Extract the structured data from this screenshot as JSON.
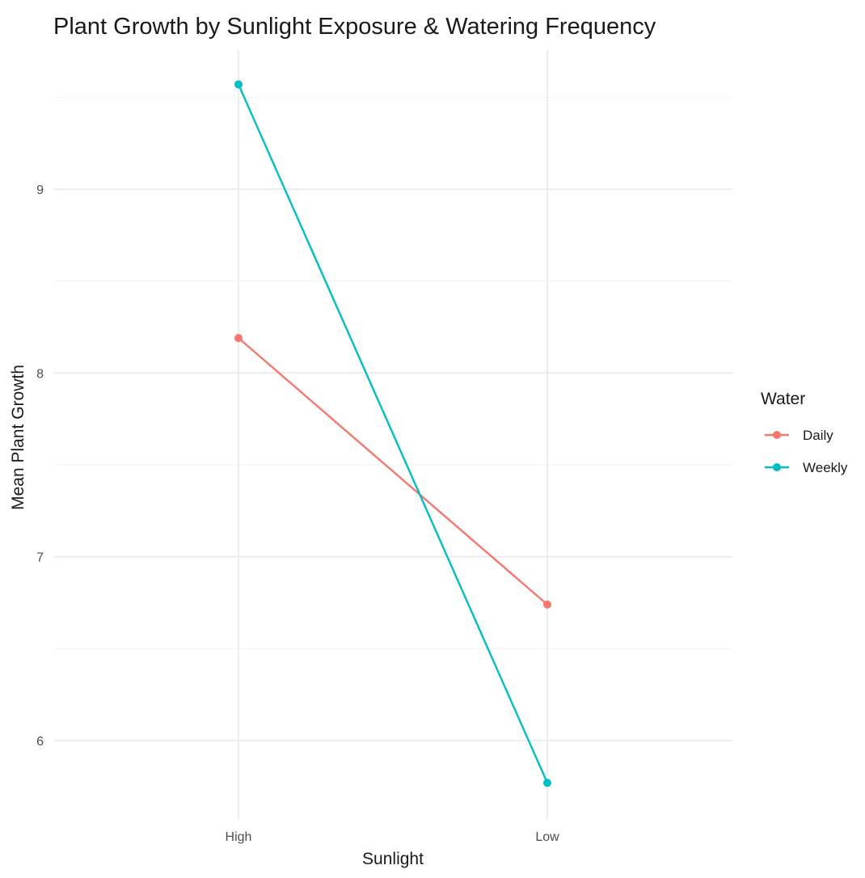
{
  "chart_data": {
    "type": "line",
    "title": "Plant Growth by Sunlight Exposure & Watering Frequency",
    "xlabel": "Sunlight",
    "ylabel": "Mean Plant Growth",
    "categories": [
      "High",
      "Low"
    ],
    "ylim": [
      5.55,
      9.8
    ],
    "yticks": [
      6,
      7,
      8,
      9
    ],
    "yticks_labels": [
      "6",
      "7",
      "8",
      "9"
    ],
    "grid": true,
    "legend": {
      "title": "Water",
      "position": "right"
    },
    "series": [
      {
        "name": "Daily",
        "color": "#F8766D",
        "values": [
          8.19,
          6.74
        ]
      },
      {
        "name": "Weekly",
        "color": "#00BFC4",
        "values": [
          9.57,
          5.77
        ]
      }
    ]
  }
}
